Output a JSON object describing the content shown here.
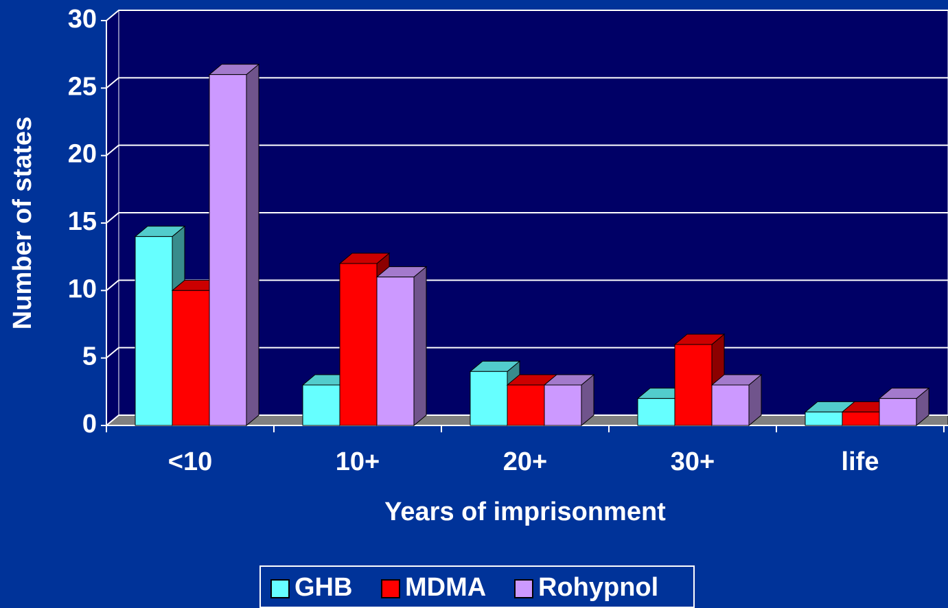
{
  "chart_data": {
    "type": "bar3d",
    "x_label": "Years of imprisonment",
    "y_label": "Number of states",
    "categories": [
      "<10",
      "10+",
      "20+",
      "30+",
      "life"
    ],
    "series": [
      {
        "name": "GHB",
        "color": "#66ffff",
        "values": [
          14,
          3,
          4,
          2,
          1
        ]
      },
      {
        "name": "MDMA",
        "color": "#ff0000",
        "values": [
          10,
          12,
          3,
          6,
          1
        ]
      },
      {
        "name": "Rohypnol",
        "color": "#cc99ff",
        "values": [
          26,
          11,
          3,
          3,
          2
        ]
      }
    ],
    "ylim": [
      0,
      30
    ],
    "yticks": [
      0,
      5,
      10,
      15,
      20,
      25,
      30
    ],
    "grid": true
  }
}
